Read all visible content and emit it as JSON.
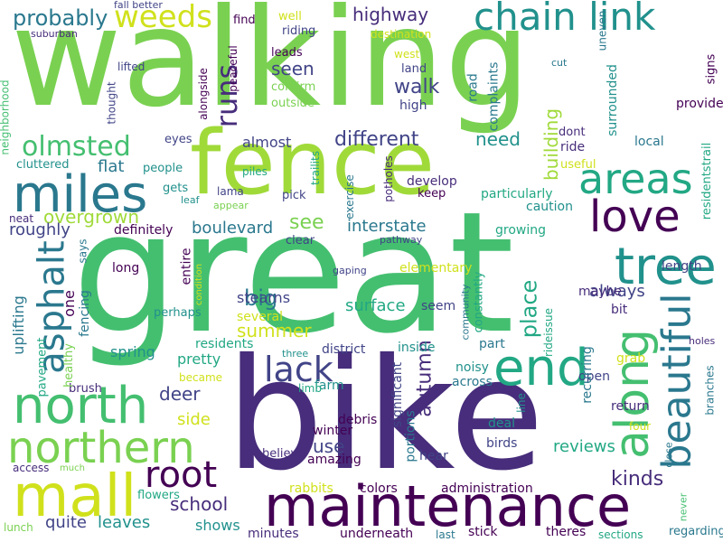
{
  "words": [
    {
      "text": "walking",
      "color": "#7ad151"
    },
    {
      "text": "great",
      "color": "#44bf70"
    },
    {
      "text": "bike",
      "color": "#472d7b"
    },
    {
      "text": "fence",
      "color": "#a0da39"
    },
    {
      "text": "maintenance",
      "color": "#440154"
    },
    {
      "text": "chain link",
      "color": "#21918c"
    },
    {
      "text": "miles",
      "color": "#2a788e"
    },
    {
      "text": "north",
      "color": "#44bf70"
    },
    {
      "text": "northern",
      "color": "#7ad151"
    },
    {
      "text": "mall",
      "color": "#d0e11c"
    },
    {
      "text": "end",
      "color": "#22a884"
    },
    {
      "text": "areas",
      "color": "#22a884"
    },
    {
      "text": "tree",
      "color": "#21918c"
    },
    {
      "text": "love",
      "color": "#440154"
    },
    {
      "text": "along",
      "color": "#44bf70"
    },
    {
      "text": "beautiful",
      "color": "#2a788e"
    },
    {
      "text": "lack",
      "color": "#414487"
    },
    {
      "text": "root",
      "color": "#440154"
    },
    {
      "text": "asphalt",
      "color": "#2a788e"
    },
    {
      "text": "olmsted",
      "color": "#44bf70"
    },
    {
      "text": "weeds",
      "color": "#d0e11c"
    },
    {
      "text": "probably",
      "color": "#2a788e"
    },
    {
      "text": "runs",
      "color": "#472d7b"
    },
    {
      "text": "overgrown",
      "color": "#a0da39"
    },
    {
      "text": "highway",
      "color": "#472d7b"
    },
    {
      "text": "walk",
      "color": "#414487"
    },
    {
      "text": "different",
      "color": "#414487"
    },
    {
      "text": "need",
      "color": "#21918c"
    },
    {
      "text": "building",
      "color": "#a0da39"
    },
    {
      "text": "place",
      "color": "#22a884"
    },
    {
      "text": "autumn",
      "color": "#472d7b"
    },
    {
      "text": "interstate",
      "color": "#2a788e"
    },
    {
      "text": "boulevard",
      "color": "#2a788e"
    },
    {
      "text": "see",
      "color": "#7ad151"
    },
    {
      "text": "seen",
      "color": "#414487"
    },
    {
      "text": "almost",
      "color": "#414487"
    },
    {
      "text": "flat",
      "color": "#2a788e"
    },
    {
      "text": "roughly",
      "color": "#414487"
    },
    {
      "text": "big",
      "color": "#2a788e"
    },
    {
      "text": "deer",
      "color": "#414487"
    },
    {
      "text": "summer",
      "color": "#d0e11c"
    },
    {
      "text": "several",
      "color": "#d0e11c"
    },
    {
      "text": "surface",
      "color": "#22a884"
    },
    {
      "text": "stearns",
      "color": "#414487"
    },
    {
      "text": "always",
      "color": "#414487"
    },
    {
      "text": "side",
      "color": "#d0e11c"
    },
    {
      "text": "use",
      "color": "#414487"
    },
    {
      "text": "school",
      "color": "#472d7b"
    },
    {
      "text": "leaves",
      "color": "#21918c"
    },
    {
      "text": "shows",
      "color": "#21918c"
    },
    {
      "text": "quite",
      "color": "#414487"
    },
    {
      "text": "kinds",
      "color": "#472d7b"
    },
    {
      "text": "reviews",
      "color": "#22a884"
    },
    {
      "text": "colors",
      "color": "#440154"
    },
    {
      "text": "amazing",
      "color": "#440154"
    },
    {
      "text": "uplifting",
      "color": "#2a788e"
    },
    {
      "text": "fencing",
      "color": "#2a788e"
    },
    {
      "text": "one",
      "color": "#440154"
    },
    {
      "text": "spring",
      "color": "#21918c"
    },
    {
      "text": "pretty",
      "color": "#22a884"
    },
    {
      "text": "residents",
      "color": "#22a884"
    },
    {
      "text": "inside",
      "color": "#21918c"
    },
    {
      "text": "district",
      "color": "#414487"
    },
    {
      "text": "winter",
      "color": "#440154"
    },
    {
      "text": "farm",
      "color": "#21918c"
    },
    {
      "text": "across",
      "color": "#2a788e"
    },
    {
      "text": "noisy",
      "color": "#21918c"
    },
    {
      "text": "birds",
      "color": "#414487"
    },
    {
      "text": "deal",
      "color": "#21918c"
    },
    {
      "text": "return",
      "color": "#472d7b"
    },
    {
      "text": "open",
      "color": "#414487"
    },
    {
      "text": "grab",
      "color": "#d0e11c"
    },
    {
      "text": "length",
      "color": "#414487"
    },
    {
      "text": "recurring",
      "color": "#2a788e"
    },
    {
      "text": "elementary",
      "color": "#d0e11c"
    },
    {
      "text": "seem",
      "color": "#414487"
    },
    {
      "text": "part",
      "color": "#2a788e"
    },
    {
      "text": "significant",
      "color": "#414487"
    },
    {
      "text": "portions",
      "color": "#2a788e"
    },
    {
      "text": "debris",
      "color": "#440154"
    },
    {
      "text": "hear",
      "color": "#414487"
    },
    {
      "text": "administration",
      "color": "#440154"
    },
    {
      "text": "stick",
      "color": "#440154"
    },
    {
      "text": "theres",
      "color": "#440154"
    },
    {
      "text": "sections",
      "color": "#22a884"
    },
    {
      "text": "regarding",
      "color": "#2a788e"
    },
    {
      "text": "minutes",
      "color": "#472d7b"
    },
    {
      "text": "underneath",
      "color": "#440154"
    },
    {
      "text": "last",
      "color": "#2a788e"
    },
    {
      "text": "rabbits",
      "color": "#d0e11c"
    },
    {
      "text": "flowers",
      "color": "#22a884"
    },
    {
      "text": "lunch",
      "color": "#7ad151"
    },
    {
      "text": "access",
      "color": "#472d7b"
    },
    {
      "text": "much",
      "color": "#7ad151"
    },
    {
      "text": "brush",
      "color": "#472d7b"
    },
    {
      "text": "pavement",
      "color": "#22a884"
    },
    {
      "text": "healthy",
      "color": "#7ad151"
    },
    {
      "text": "long",
      "color": "#440154"
    },
    {
      "text": "says",
      "color": "#2a788e"
    },
    {
      "text": "neat",
      "color": "#472d7b"
    },
    {
      "text": "cluttered",
      "color": "#21918c"
    },
    {
      "text": "neighborhood",
      "color": "#44bf70"
    },
    {
      "text": "suburban",
      "color": "#472d7b"
    },
    {
      "text": "fall better",
      "color": "#414487"
    },
    {
      "text": "lifted",
      "color": "#414487"
    },
    {
      "text": "thought",
      "color": "#414487"
    },
    {
      "text": "eyes",
      "color": "#414487"
    },
    {
      "text": "people",
      "color": "#21918c"
    },
    {
      "text": "gets",
      "color": "#21918c"
    },
    {
      "text": "leaf",
      "color": "#21918c"
    },
    {
      "text": "lama",
      "color": "#414487"
    },
    {
      "text": "piles",
      "color": "#22a884"
    },
    {
      "text": "appear",
      "color": "#7ad151"
    },
    {
      "text": "definitely",
      "color": "#440154"
    },
    {
      "text": "entire",
      "color": "#440154"
    },
    {
      "text": "perhaps",
      "color": "#21918c"
    },
    {
      "text": "became",
      "color": "#d0e11c"
    },
    {
      "text": "limb",
      "color": "#22a884"
    },
    {
      "text": "three",
      "color": "#21918c"
    },
    {
      "text": "condition",
      "color": "#d0e11c"
    },
    {
      "text": "gaping",
      "color": "#414487"
    },
    {
      "text": "pathway",
      "color": "#414487"
    },
    {
      "text": "clear",
      "color": "#414487"
    },
    {
      "text": "pick",
      "color": "#414487"
    },
    {
      "text": "trailits",
      "color": "#22a884"
    },
    {
      "text": "exercise",
      "color": "#2a788e"
    },
    {
      "text": "potholes",
      "color": "#472d7b"
    },
    {
      "text": "develop",
      "color": "#472d7b"
    },
    {
      "text": "keep",
      "color": "#440154"
    },
    {
      "text": "particularly",
      "color": "#22a884"
    },
    {
      "text": "caution",
      "color": "#21918c"
    },
    {
      "text": "growing",
      "color": "#22a884"
    },
    {
      "text": "community",
      "color": "#2a788e"
    },
    {
      "text": "constantly",
      "color": "#22a884"
    },
    {
      "text": "maybe",
      "color": "#472d7b"
    },
    {
      "text": "bit",
      "color": "#472d7b"
    },
    {
      "text": "rideissue",
      "color": "#22a884"
    },
    {
      "text": "line",
      "color": "#21918c"
    },
    {
      "text": "believe",
      "color": "#472d7b"
    },
    {
      "text": "holes",
      "color": "#472d7b"
    },
    {
      "text": "branches",
      "color": "#2a788e"
    },
    {
      "text": "four",
      "color": "#d0e11c"
    },
    {
      "text": "close",
      "color": "#2a788e"
    },
    {
      "text": "never",
      "color": "#44bf70"
    },
    {
      "text": "residentstrail",
      "color": "#22a884"
    },
    {
      "text": "local",
      "color": "#2a788e"
    },
    {
      "text": "useful",
      "color": "#d0e11c"
    },
    {
      "text": "provides",
      "color": "#440154"
    },
    {
      "text": "signs",
      "color": "#440154"
    },
    {
      "text": "surrounded",
      "color": "#21918c"
    },
    {
      "text": "dont",
      "color": "#472d7b"
    },
    {
      "text": "ride",
      "color": "#472d7b"
    },
    {
      "text": "uneven",
      "color": "#2a788e"
    },
    {
      "text": "cut",
      "color": "#2a788e"
    },
    {
      "text": "road",
      "color": "#2a788e"
    },
    {
      "text": "complaints",
      "color": "#2a788e"
    },
    {
      "text": "high",
      "color": "#414487"
    },
    {
      "text": "land",
      "color": "#414487"
    },
    {
      "text": "west",
      "color": "#d0e11c"
    },
    {
      "text": "destination",
      "color": "#d0e11c"
    },
    {
      "text": "well",
      "color": "#d0e11c"
    },
    {
      "text": "riding",
      "color": "#414487"
    },
    {
      "text": "leads",
      "color": "#440154"
    },
    {
      "text": "confirm",
      "color": "#7ad151"
    },
    {
      "text": "outside",
      "color": "#7ad151"
    },
    {
      "text": "find",
      "color": "#440154"
    },
    {
      "text": "alongside",
      "color": "#440154"
    },
    {
      "text": "peaceful",
      "color": "#440154"
    }
  ]
}
